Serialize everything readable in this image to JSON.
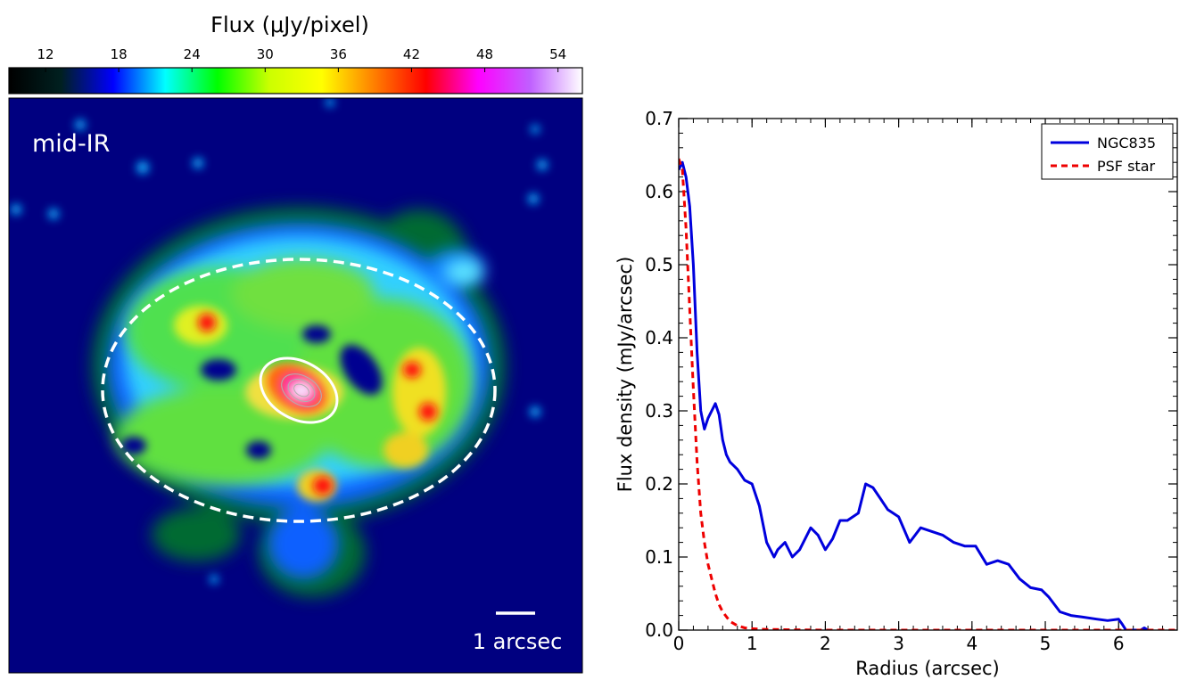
{
  "image_panel": {
    "colorbar": {
      "title": "Flux (μJy/pixel)",
      "ticks": [
        "12",
        "18",
        "24",
        "30",
        "36",
        "42",
        "48",
        "54"
      ],
      "colors": [
        "#000000",
        "#002020",
        "#0000ff",
        "#00ffff",
        "#00ff00",
        "#ccff00",
        "#ffff00",
        "#ff8000",
        "#ff0000",
        "#ff00ff",
        "#c060ff",
        "#ffffff"
      ]
    },
    "label": "mid-IR",
    "scalebar_label": "1 arcsec",
    "background_color": "#000080"
  },
  "chart_data": {
    "type": "line",
    "title": "",
    "xlabel": "Radius (arcsec)",
    "ylabel": "Flux density (mJy/arcsec)",
    "xlim": [
      0,
      6.8
    ],
    "ylim": [
      0,
      0.7
    ],
    "xticks": [
      "0",
      "1",
      "2",
      "3",
      "4",
      "5",
      "6"
    ],
    "yticks": [
      "0.0",
      "0.1",
      "0.2",
      "0.3",
      "0.4",
      "0.5",
      "0.6",
      "0.7"
    ],
    "legend_position": "top-right",
    "series": [
      {
        "name": "NGC835",
        "color": "#0000dd",
        "style": "solid",
        "x": [
          0.0,
          0.05,
          0.1,
          0.15,
          0.2,
          0.25,
          0.3,
          0.35,
          0.4,
          0.45,
          0.5,
          0.55,
          0.6,
          0.65,
          0.7,
          0.8,
          0.9,
          1.0,
          1.1,
          1.2,
          1.3,
          1.35,
          1.45,
          1.55,
          1.65,
          1.8,
          1.9,
          2.0,
          2.1,
          2.2,
          2.3,
          2.45,
          2.55,
          2.65,
          2.75,
          2.85,
          3.0,
          3.15,
          3.3,
          3.45,
          3.6,
          3.75,
          3.9,
          4.05,
          4.2,
          4.35,
          4.5,
          4.65,
          4.8,
          4.95,
          5.05,
          5.2,
          5.35,
          5.5,
          5.7,
          5.85,
          6.0,
          6.05,
          6.1,
          6.3,
          6.35,
          6.4
        ],
        "y": [
          0.63,
          0.64,
          0.62,
          0.58,
          0.5,
          0.38,
          0.3,
          0.275,
          0.29,
          0.3,
          0.31,
          0.295,
          0.26,
          0.24,
          0.23,
          0.22,
          0.205,
          0.2,
          0.17,
          0.12,
          0.1,
          0.11,
          0.12,
          0.1,
          0.11,
          0.14,
          0.13,
          0.11,
          0.125,
          0.15,
          0.15,
          0.16,
          0.2,
          0.195,
          0.18,
          0.165,
          0.155,
          0.12,
          0.14,
          0.135,
          0.13,
          0.12,
          0.115,
          0.115,
          0.09,
          0.095,
          0.09,
          0.07,
          0.058,
          0.055,
          0.045,
          0.025,
          0.02,
          0.018,
          0.015,
          0.013,
          0.015,
          0.008,
          0.0,
          0.0,
          0.003,
          0.0
        ]
      },
      {
        "name": "PSF star",
        "color": "#ee0000",
        "style": "dashed",
        "x": [
          0.0,
          0.05,
          0.1,
          0.15,
          0.2,
          0.25,
          0.3,
          0.35,
          0.4,
          0.45,
          0.5,
          0.55,
          0.6,
          0.7,
          0.8,
          0.9,
          1.0,
          1.2,
          1.5,
          2.0,
          3.0,
          4.0,
          5.0,
          6.0,
          6.8
        ],
        "y": [
          0.645,
          0.63,
          0.55,
          0.44,
          0.33,
          0.23,
          0.16,
          0.12,
          0.09,
          0.07,
          0.05,
          0.035,
          0.025,
          0.012,
          0.006,
          0.003,
          0.002,
          0.001,
          0.0005,
          0.0,
          0.0,
          0.0,
          0.0,
          0.0,
          0.0
        ]
      }
    ]
  }
}
